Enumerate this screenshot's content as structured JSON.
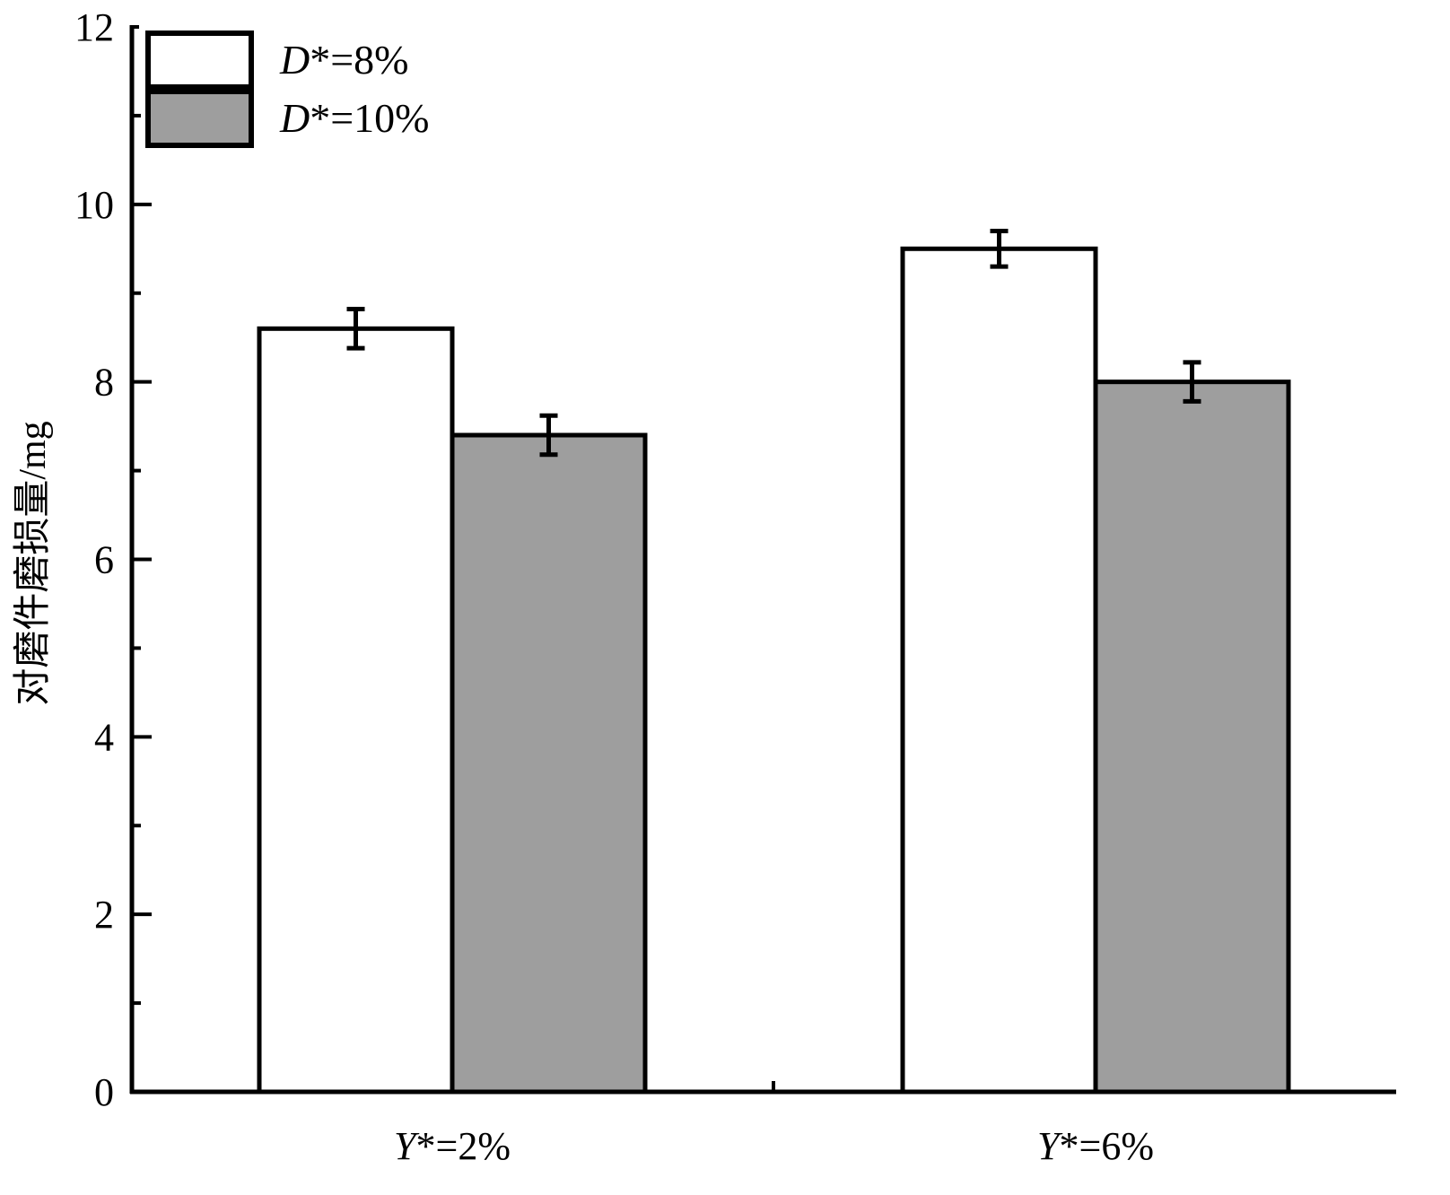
{
  "chart_data": {
    "type": "bar",
    "title": "",
    "xlabel": "",
    "ylabel": "对磨件磨损量/mg",
    "ylim": [
      0,
      12
    ],
    "yticks": [
      0,
      2,
      4,
      6,
      8,
      10,
      12
    ],
    "categories": [
      {
        "prefix": "Y",
        "suffix": "*=2%"
      },
      {
        "prefix": "Y",
        "suffix": "*=6%"
      }
    ],
    "series": [
      {
        "name_prefix": "D",
        "name_suffix": "*=8%",
        "color": "#ffffff",
        "values": [
          8.6,
          9.5
        ],
        "errors": [
          0.22,
          0.2
        ]
      },
      {
        "name_prefix": "D",
        "name_suffix": "*=10%",
        "color": "#9e9e9e",
        "values": [
          7.4,
          8.0
        ],
        "errors": [
          0.22,
          0.22
        ]
      }
    ],
    "legend_position": "top-left",
    "grid": false
  }
}
